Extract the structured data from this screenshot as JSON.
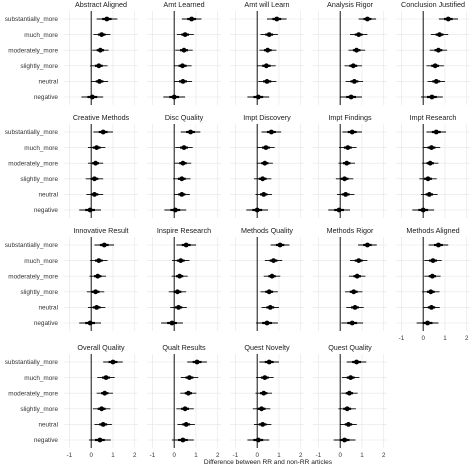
{
  "chart_data": {
    "type": "forest",
    "xlabel": "Difference between RR and non-RR articles",
    "ylabel": "",
    "xlim": [
      -1.25,
      2.15
    ],
    "x_ticks": [
      -1,
      0,
      1,
      2
    ],
    "reference_line": 0,
    "grid": true,
    "categories": [
      "substantially_more",
      "much_more",
      "moderately_more",
      "slightly_more",
      "neutral",
      "negative"
    ],
    "panels": [
      {
        "title": "Abstract Aligned",
        "estimates": [
          0.72,
          0.48,
          0.42,
          0.35,
          0.38,
          0.05
        ],
        "lower": [
          0.25,
          0.1,
          0.05,
          -0.05,
          0.0,
          -0.45
        ],
        "upper": [
          1.2,
          0.88,
          0.8,
          0.75,
          0.78,
          0.55
        ]
      },
      {
        "title": "Amt Learned",
        "estimates": [
          0.8,
          0.5,
          0.45,
          0.38,
          0.4,
          0.0
        ],
        "lower": [
          0.35,
          0.12,
          0.05,
          -0.02,
          0.0,
          -0.5
        ],
        "upper": [
          1.25,
          0.9,
          0.85,
          0.8,
          0.82,
          0.5
        ]
      },
      {
        "title": "Amt will Learn",
        "estimates": [
          0.9,
          0.55,
          0.48,
          0.42,
          0.45,
          0.05
        ],
        "lower": [
          0.45,
          0.15,
          0.1,
          0.0,
          0.05,
          -0.45
        ],
        "upper": [
          1.35,
          0.95,
          0.88,
          0.85,
          0.88,
          0.55
        ]
      },
      {
        "title": "Analysis Rigor",
        "estimates": [
          1.25,
          0.85,
          0.75,
          0.6,
          0.65,
          0.5
        ],
        "lower": [
          0.85,
          0.45,
          0.38,
          0.2,
          0.25,
          0.0
        ],
        "upper": [
          1.65,
          1.25,
          1.15,
          1.0,
          1.05,
          1.0
        ]
      },
      {
        "title": "Conclusion Justified",
        "estimates": [
          1.15,
          0.75,
          0.7,
          0.55,
          0.6,
          0.4
        ],
        "lower": [
          0.72,
          0.35,
          0.3,
          0.15,
          0.2,
          -0.1
        ],
        "upper": [
          1.6,
          1.15,
          1.1,
          0.95,
          1.0,
          0.9
        ]
      },
      {
        "title": "Creative Methods",
        "estimates": [
          0.55,
          0.25,
          0.2,
          0.15,
          0.15,
          -0.05
        ],
        "lower": [
          0.1,
          -0.15,
          -0.15,
          -0.25,
          -0.22,
          -0.55
        ],
        "upper": [
          1.0,
          0.65,
          0.55,
          0.55,
          0.55,
          0.45
        ]
      },
      {
        "title": "Disc Quality",
        "estimates": [
          0.75,
          0.45,
          0.4,
          0.35,
          0.35,
          0.05
        ],
        "lower": [
          0.3,
          0.05,
          0.02,
          -0.05,
          -0.02,
          -0.45
        ],
        "upper": [
          1.2,
          0.85,
          0.78,
          0.75,
          0.72,
          0.55
        ]
      },
      {
        "title": "Impt Discovery",
        "estimates": [
          0.65,
          0.4,
          0.35,
          0.25,
          0.3,
          0.0
        ],
        "lower": [
          0.2,
          0.0,
          -0.02,
          -0.15,
          -0.08,
          -0.5
        ],
        "upper": [
          1.1,
          0.8,
          0.72,
          0.65,
          0.68,
          0.5
        ]
      },
      {
        "title": "Impt Findings",
        "estimates": [
          0.55,
          0.35,
          0.3,
          0.2,
          0.25,
          -0.05
        ],
        "lower": [
          0.1,
          -0.05,
          -0.08,
          -0.2,
          -0.15,
          -0.55
        ],
        "upper": [
          1.0,
          0.75,
          0.68,
          0.6,
          0.65,
          0.45
        ]
      },
      {
        "title": "Impt Research",
        "estimates": [
          0.6,
          0.38,
          0.32,
          0.22,
          0.28,
          0.0
        ],
        "lower": [
          0.15,
          -0.02,
          -0.05,
          -0.18,
          -0.1,
          -0.5
        ],
        "upper": [
          1.05,
          0.78,
          0.7,
          0.62,
          0.66,
          0.5
        ]
      },
      {
        "title": "Innovative Result",
        "estimates": [
          0.6,
          0.35,
          0.3,
          0.2,
          0.25,
          -0.05
        ],
        "lower": [
          0.15,
          -0.05,
          -0.08,
          -0.2,
          -0.15,
          -0.55
        ],
        "upper": [
          1.05,
          0.75,
          0.68,
          0.6,
          0.65,
          0.45
        ]
      },
      {
        "title": "Inspire Research",
        "estimates": [
          0.55,
          0.3,
          0.25,
          0.15,
          0.2,
          -0.1
        ],
        "lower": [
          0.1,
          -0.1,
          -0.12,
          -0.25,
          -0.18,
          -0.6
        ],
        "upper": [
          1.0,
          0.7,
          0.62,
          0.55,
          0.58,
          0.4
        ]
      },
      {
        "title": "Methods Quality",
        "estimates": [
          1.05,
          0.75,
          0.68,
          0.55,
          0.6,
          0.45
        ],
        "lower": [
          0.62,
          0.35,
          0.3,
          0.15,
          0.2,
          -0.05
        ],
        "upper": [
          1.48,
          1.15,
          1.06,
          0.95,
          1.0,
          0.95
        ]
      },
      {
        "title": "Methods Rigor",
        "estimates": [
          1.25,
          0.85,
          0.78,
          0.62,
          0.68,
          0.55
        ],
        "lower": [
          0.82,
          0.45,
          0.4,
          0.22,
          0.28,
          0.05
        ],
        "upper": [
          1.68,
          1.25,
          1.16,
          1.02,
          1.08,
          1.05
        ]
      },
      {
        "title": "Methods Aligned",
        "estimates": [
          0.7,
          0.45,
          0.42,
          0.35,
          0.38,
          0.2
        ],
        "lower": [
          0.25,
          0.05,
          0.05,
          -0.05,
          0.0,
          -0.3
        ],
        "upper": [
          1.15,
          0.85,
          0.8,
          0.75,
          0.76,
          0.7
        ]
      },
      {
        "title": "Overall Quality",
        "estimates": [
          1.0,
          0.68,
          0.62,
          0.48,
          0.55,
          0.4
        ],
        "lower": [
          0.55,
          0.28,
          0.25,
          0.08,
          0.15,
          -0.1
        ],
        "upper": [
          1.45,
          1.08,
          1.0,
          0.88,
          0.95,
          0.9
        ]
      },
      {
        "title": "Qualt Results",
        "estimates": [
          1.05,
          0.7,
          0.65,
          0.5,
          0.55,
          0.4
        ],
        "lower": [
          0.6,
          0.3,
          0.28,
          0.1,
          0.15,
          -0.1
        ],
        "upper": [
          1.5,
          1.1,
          1.02,
          0.9,
          0.95,
          0.9
        ]
      },
      {
        "title": "Quest Novelty",
        "estimates": [
          0.55,
          0.35,
          0.3,
          0.2,
          0.25,
          0.05
        ],
        "lower": [
          0.1,
          -0.05,
          -0.08,
          -0.2,
          -0.15,
          -0.45
        ],
        "upper": [
          1.0,
          0.75,
          0.68,
          0.6,
          0.65,
          0.55
        ]
      },
      {
        "title": "Quest Quality",
        "estimates": [
          0.75,
          0.48,
          0.42,
          0.32,
          0.38,
          0.2
        ],
        "lower": [
          0.3,
          0.08,
          0.05,
          -0.08,
          0.0,
          -0.3
        ],
        "upper": [
          1.2,
          0.88,
          0.8,
          0.72,
          0.76,
          0.7
        ]
      }
    ]
  }
}
